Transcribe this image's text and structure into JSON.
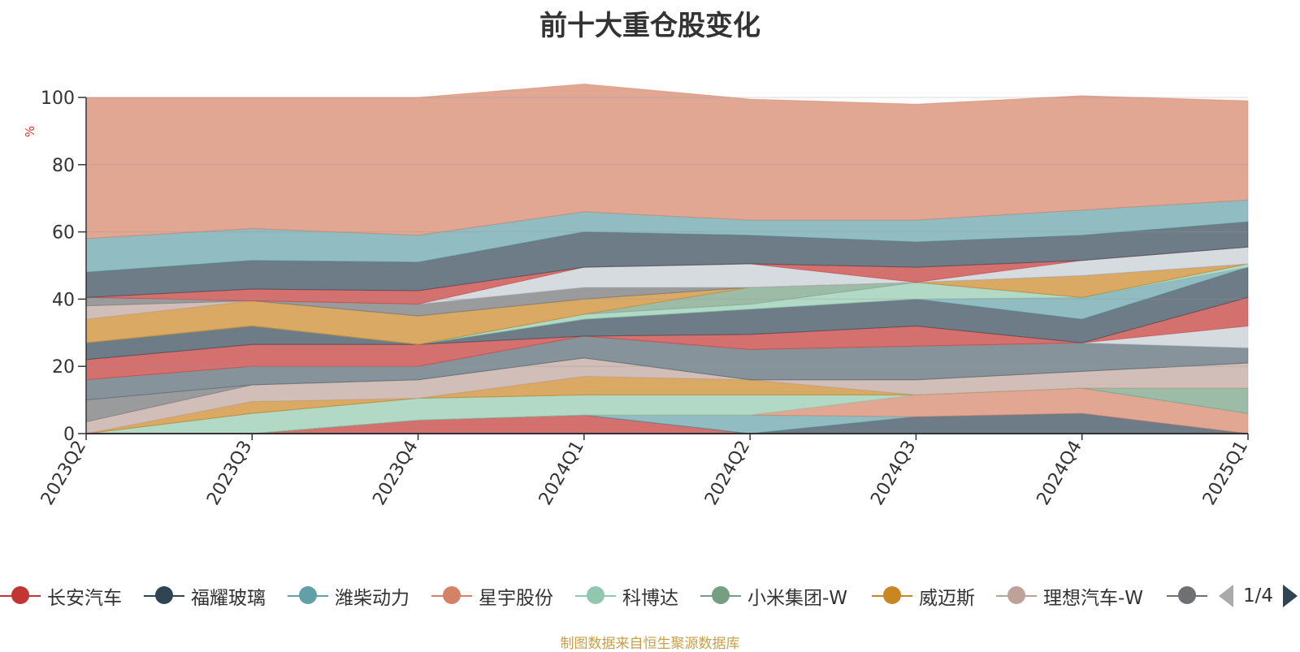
{
  "chart_data": {
    "type": "area",
    "title": "前十大重仓股变化",
    "ylabel": "%",
    "xlabel": "",
    "ylim": [
      0,
      100
    ],
    "yticks": [
      0,
      20,
      40,
      60,
      80,
      100
    ],
    "stacked": true,
    "grid": true,
    "categories": [
      "2023Q2",
      "2023Q3",
      "2023Q4",
      "2024Q1",
      "2024Q2",
      "2024Q3",
      "2024Q4",
      "2025Q1"
    ],
    "series": [
      {
        "name": "长安汽车",
        "color": "#c23531",
        "values": [
          0,
          0,
          4,
          5.5,
          0,
          0,
          0,
          0
        ]
      },
      {
        "name": "福耀玻璃",
        "color": "#2f4554",
        "values": [
          0,
          0,
          0,
          0,
          0,
          5,
          6,
          0
        ]
      },
      {
        "name": "潍柴动力",
        "color": "#61a0a8",
        "values": [
          0,
          0,
          0,
          0,
          5.5,
          0,
          0,
          0
        ]
      },
      {
        "name": "星宇股份",
        "color": "#d48265",
        "values": [
          0,
          0,
          0,
          0,
          0,
          6.5,
          7.5,
          6
        ]
      },
      {
        "name": "科博达",
        "color": "#91c7ae",
        "values": [
          0,
          6,
          6.5,
          6,
          6,
          0,
          0,
          0
        ]
      },
      {
        "name": "小米集团-W",
        "color": "#749f83",
        "values": [
          0,
          0,
          0,
          0,
          0,
          0,
          0,
          7.5
        ]
      },
      {
        "name": "威迈斯",
        "color": "#ca8622",
        "values": [
          0,
          3.5,
          0,
          5.5,
          4.5,
          0,
          0,
          0
        ]
      },
      {
        "name": "理想汽车-W",
        "color": "#bda29a",
        "values": [
          3.5,
          5,
          5.5,
          5.5,
          0,
          4.5,
          5,
          7.5
        ]
      },
      {
        "name": "",
        "color": "#6e7074",
        "values": [
          6.5,
          0,
          0,
          0,
          0,
          0,
          0,
          0
        ]
      },
      {
        "name": "",
        "color": "#546570",
        "values": [
          6,
          5.5,
          4,
          6.5,
          9,
          10,
          8.5,
          4.5
        ]
      },
      {
        "name": "",
        "color": "#c4ccd3",
        "values": [
          0,
          0,
          0,
          0,
          0,
          0,
          0,
          6.5
        ]
      },
      {
        "name": "",
        "color": "#c23531",
        "values": [
          6,
          6.5,
          6.5,
          0,
          4.5,
          6,
          0,
          8.5
        ]
      },
      {
        "name": "",
        "color": "#2f4554",
        "values": [
          5,
          5.5,
          0,
          5,
          7.5,
          8,
          7,
          9
        ]
      },
      {
        "name": "",
        "color": "#61a0a8",
        "values": [
          0,
          0,
          0,
          0,
          0,
          0,
          6.5,
          0
        ]
      },
      {
        "name": "",
        "color": "#91c7ae",
        "values": [
          0,
          0,
          0,
          1.5,
          1.5,
          5,
          0,
          1
        ]
      },
      {
        "name": "",
        "color": "#749f83",
        "values": [
          0,
          0,
          0,
          0,
          5,
          0,
          0,
          0
        ]
      },
      {
        "name": "",
        "color": "#ca8622",
        "values": [
          7,
          7.5,
          8.5,
          4.5,
          0,
          0,
          6.5,
          0
        ]
      },
      {
        "name": "",
        "color": "#bda29a",
        "values": [
          4,
          0,
          0,
          0,
          0,
          0,
          0,
          0
        ]
      },
      {
        "name": "",
        "color": "#6e7074",
        "values": [
          2.5,
          0,
          3.5,
          3.5,
          0,
          0,
          0,
          0
        ]
      },
      {
        "name": "",
        "color": "#c4ccd3",
        "values": [
          0,
          0,
          0,
          6,
          7,
          0,
          4.5,
          5
        ]
      },
      {
        "name": "",
        "color": "#c23531",
        "values": [
          0,
          3.5,
          4,
          0,
          0,
          4.5,
          0,
          0
        ]
      },
      {
        "name": "",
        "color": "#2f4554",
        "values": [
          7.5,
          8.5,
          8.5,
          10.5,
          8.5,
          7.5,
          7.5,
          7.5
        ]
      },
      {
        "name": "",
        "color": "#61a0a8",
        "values": [
          10,
          9.5,
          8,
          6,
          4.5,
          6.5,
          7.5,
          6.5
        ]
      },
      {
        "name": "",
        "color": "#d48265",
        "values": [
          42,
          39,
          41,
          38,
          36,
          34.5,
          34,
          29.5
        ]
      }
    ],
    "legend": {
      "position": "bottom",
      "page": "1/4"
    }
  },
  "footer": {
    "source": "制图数据来自恒生聚源数据库"
  }
}
